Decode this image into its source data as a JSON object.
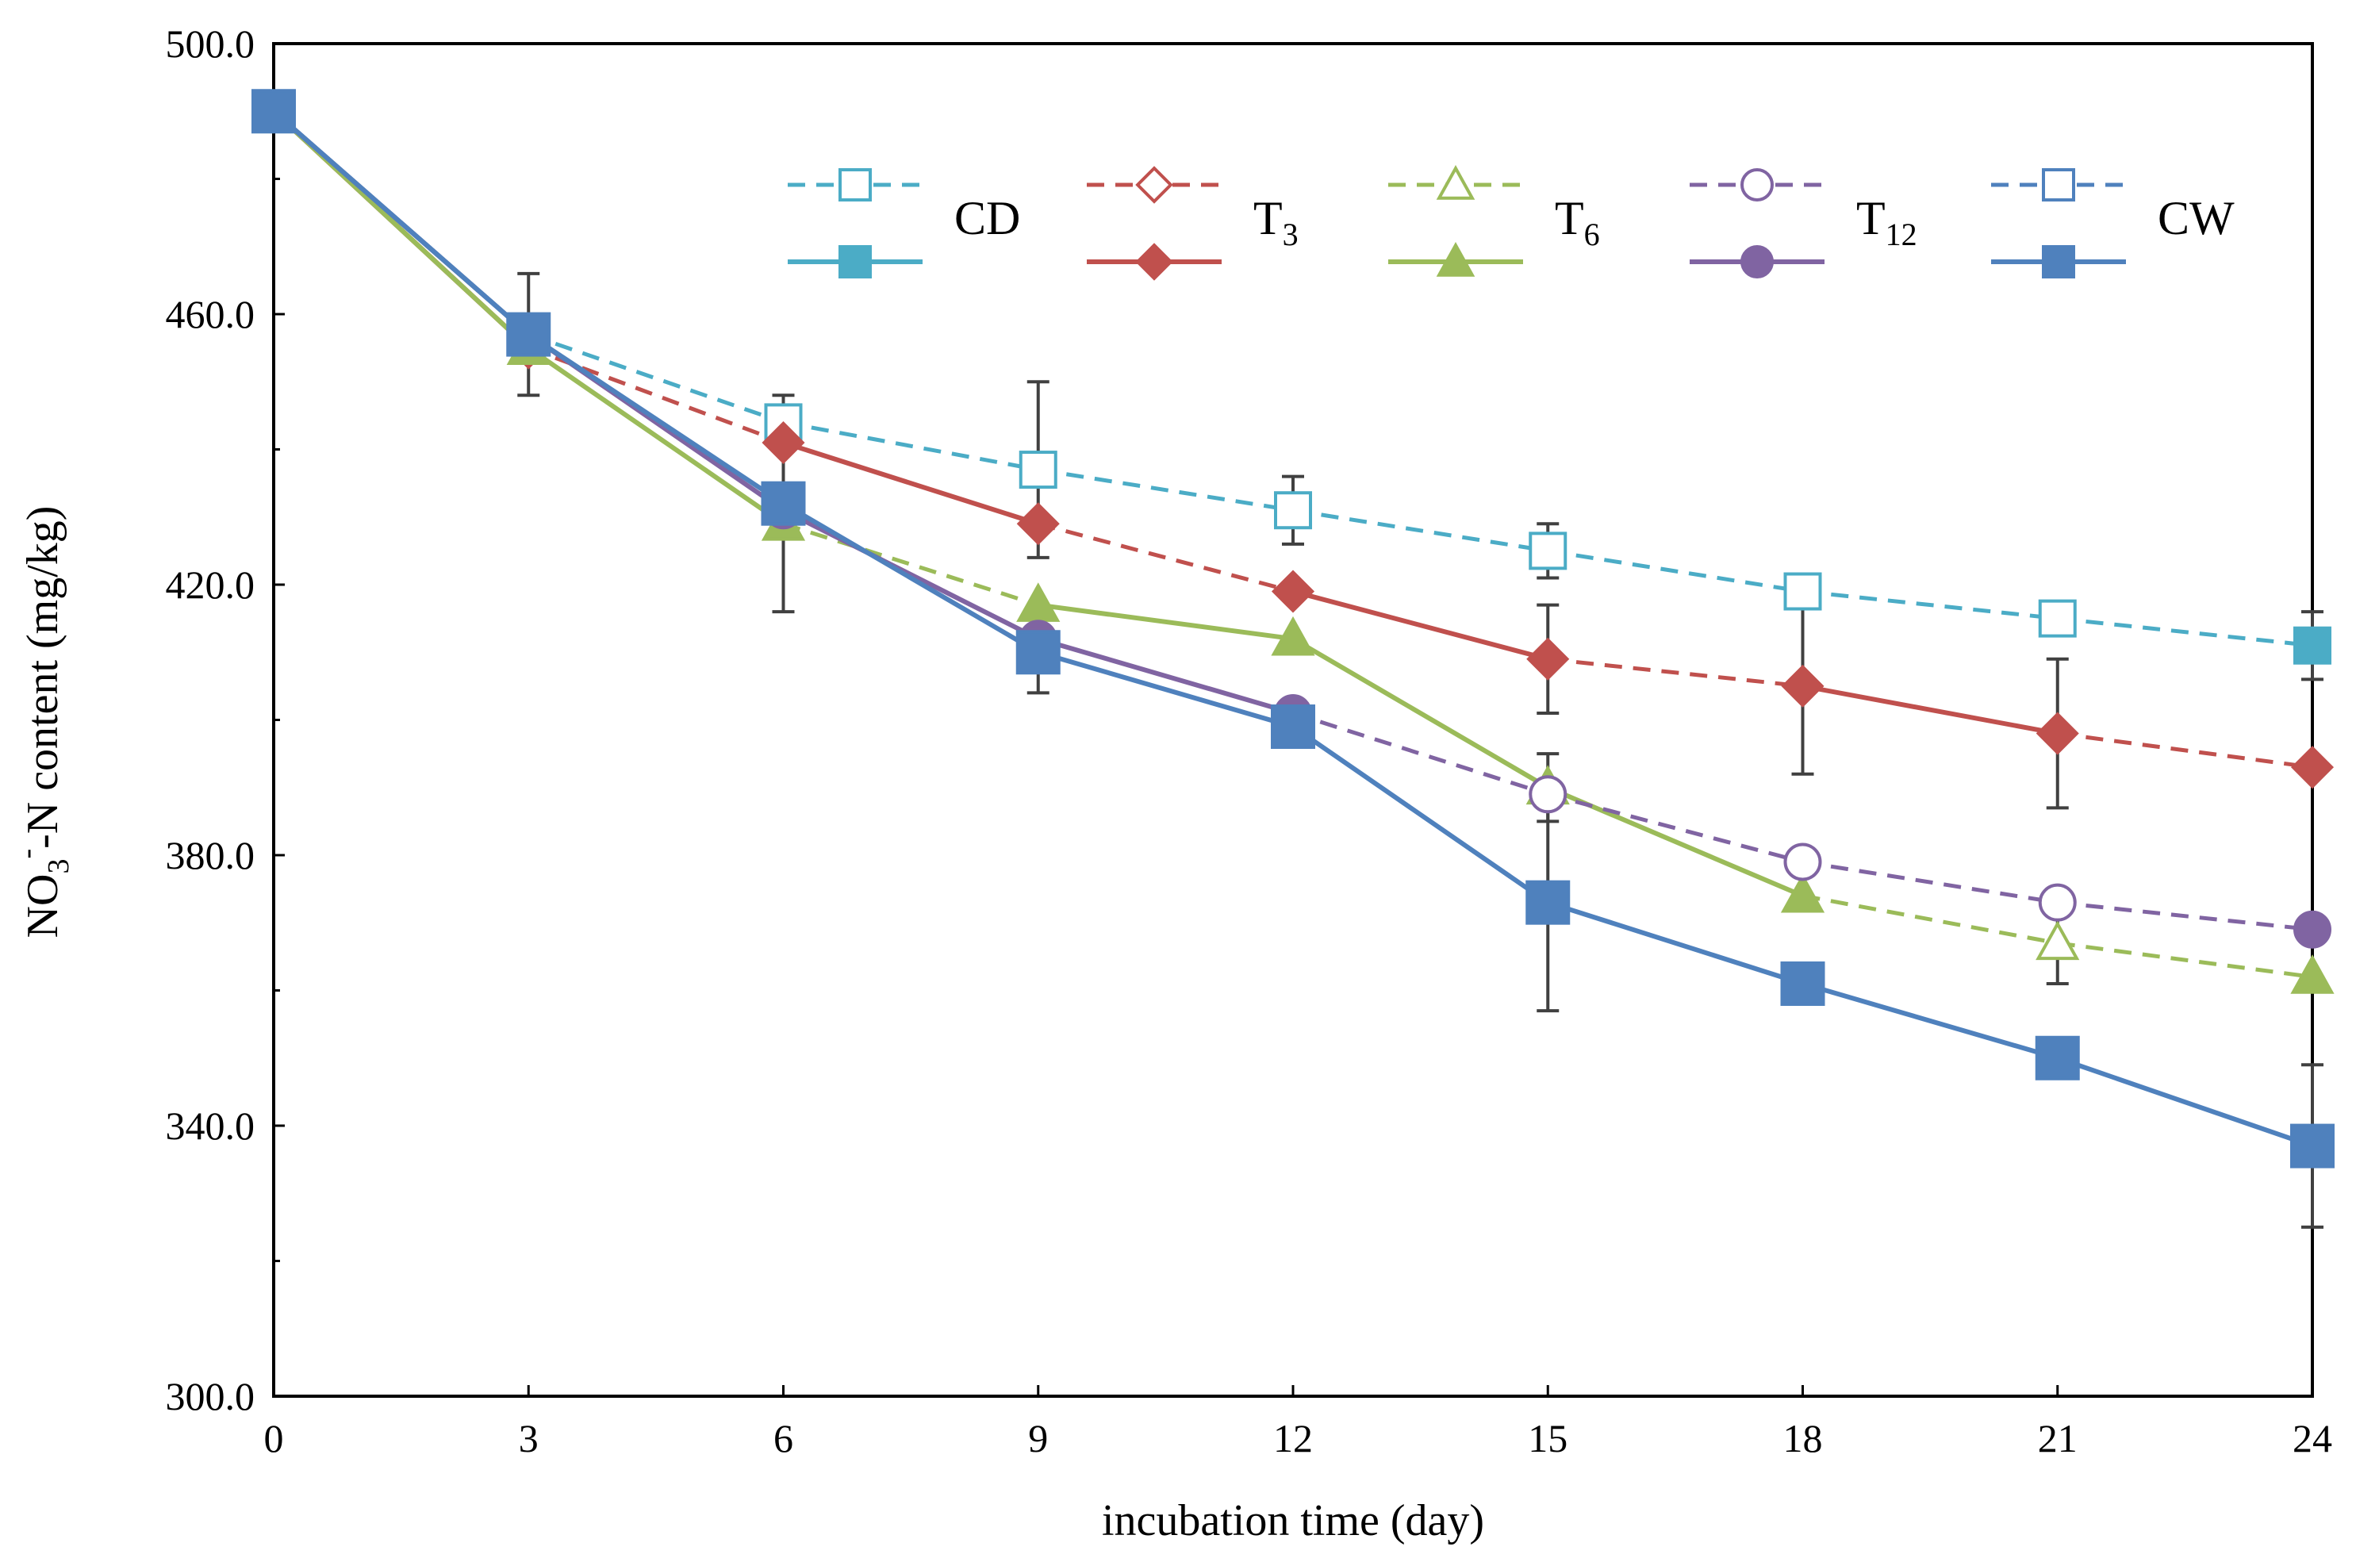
{
  "chart_data": {
    "type": "line",
    "title": "",
    "xlabel": "incubation time (day)",
    "ylabel": "NO3⁻-N content (mg/kg)",
    "ylabel_parts": {
      "pre": "NO",
      "sub": "3",
      "sup": "-",
      "post": "-N content (mg/kg)"
    },
    "x": [
      0,
      3,
      6,
      9,
      12,
      15,
      18,
      21,
      24
    ],
    "x_tick_labels": [
      "0",
      "3",
      "6",
      "9",
      "12",
      "15",
      "18",
      "21",
      "24"
    ],
    "y_ticks": [
      300,
      340,
      380,
      420,
      460,
      500
    ],
    "y_tick_labels": [
      "300.0",
      "340.0",
      "380.0",
      "420.0",
      "460.0",
      "500.0"
    ],
    "xlim": [
      0,
      24
    ],
    "ylim": [
      300,
      500
    ],
    "grid": false,
    "legend_position": "top-right",
    "treatments": [
      {
        "name": "CD",
        "base": "CD",
        "sub": "",
        "color": "#4bacc6",
        "marker": "square",
        "values": [
          490,
          457,
          444,
          437,
          431,
          425,
          419,
          415,
          411
        ],
        "err": [
          0,
          9,
          4,
          13,
          5,
          4,
          0,
          0,
          5
        ],
        "dashed_intervals": [
          1,
          2,
          3,
          4,
          5,
          6,
          7
        ],
        "solid_intervals": [
          0
        ]
      },
      {
        "name": "T3",
        "base": "T",
        "sub": "3",
        "color": "#c0504d",
        "marker": "diamond",
        "values": [
          490,
          455,
          441,
          429,
          419,
          409,
          405,
          398,
          393
        ],
        "err": [
          0,
          0,
          0,
          0,
          0,
          8,
          13,
          11,
          0
        ],
        "dashed_intervals": [
          1,
          3,
          5,
          7
        ],
        "solid_intervals": [
          0,
          2,
          4,
          6
        ]
      },
      {
        "name": "T6",
        "base": "T",
        "sub": "6",
        "color": "#9bbb59",
        "marker": "triangle",
        "values": [
          490,
          455,
          429,
          417,
          412,
          390,
          374,
          367,
          362
        ],
        "err": [
          0,
          0,
          13,
          0,
          0,
          5,
          0,
          6,
          0
        ],
        "dashed_intervals": [
          2,
          6,
          7
        ],
        "solid_intervals": [
          0,
          1,
          3,
          4,
          5
        ]
      },
      {
        "name": "T12",
        "base": "T",
        "sub": "12",
        "color": "#8064a2",
        "marker": "circle",
        "values": [
          490,
          457,
          431,
          412,
          401,
          389,
          379,
          373,
          369
        ],
        "err": [
          0,
          0,
          0,
          0,
          0,
          0,
          0,
          0,
          0
        ],
        "dashed_intervals": [
          4,
          5,
          6,
          7
        ],
        "solid_intervals": [
          0,
          1,
          2,
          3
        ]
      },
      {
        "name": "CW",
        "base": "CW",
        "sub": "",
        "color": "#4f81bd",
        "marker": "square",
        "values": [
          490,
          457,
          432,
          410,
          399,
          373,
          361,
          350,
          337
        ],
        "err": [
          0,
          0,
          0,
          6,
          3,
          16,
          0,
          0,
          12
        ],
        "dashed_intervals": [],
        "solid_intervals": [
          0,
          1,
          2,
          3,
          4,
          5,
          6,
          7
        ]
      }
    ],
    "legend_entries": [
      {
        "label": "CD",
        "base": "CD",
        "sub": "",
        "color": "#4bacc6",
        "marker": "square"
      },
      {
        "label": "T3",
        "base": "T",
        "sub": "3",
        "color": "#c0504d",
        "marker": "diamond"
      },
      {
        "label": "T6",
        "base": "T",
        "sub": "6",
        "color": "#9bbb59",
        "marker": "triangle"
      },
      {
        "label": "T12",
        "base": "T",
        "sub": "12",
        "color": "#8064a2",
        "marker": "circle"
      },
      {
        "label": "CW",
        "base": "CW",
        "sub": "",
        "color": "#4f81bd",
        "marker": "square"
      }
    ]
  }
}
